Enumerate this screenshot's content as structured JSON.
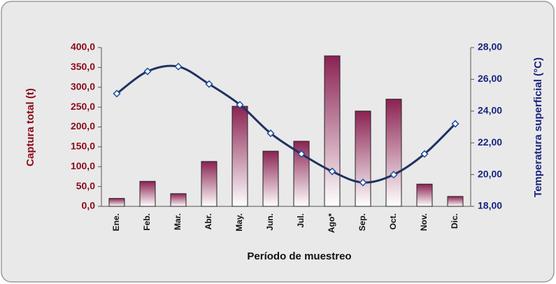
{
  "chart_data": {
    "type": "bar",
    "xlabel": "Período de muestreo",
    "ylabel": "Captura total (t)",
    "y2label": "Temperatura superficial (°C)",
    "categories": [
      "Ene.",
      "Feb.",
      "Mar.",
      "Abr.",
      "May.",
      "Jun.",
      "Jul.",
      "Ago*",
      "Sep.",
      "Oct.",
      "Nov.",
      "Dic."
    ],
    "series": [
      {
        "type": "bar",
        "color": "#8b2252",
        "values": [
          20,
          63,
          32,
          113,
          252,
          139,
          164,
          379,
          240,
          270,
          56,
          25
        ]
      },
      {
        "type": "line",
        "axis": "y2",
        "color": "#1f3160",
        "values": [
          25.1,
          26.5,
          26.8,
          25.7,
          24.4,
          22.6,
          21.3,
          20.2,
          19.5,
          20.0,
          21.3,
          23.2
        ]
      }
    ],
    "ylim": [
      0,
      400
    ],
    "yticks": [
      {
        "value": 0,
        "label": "0,0"
      },
      {
        "value": 50,
        "label": "50,0"
      },
      {
        "value": 100,
        "label": "100,0"
      },
      {
        "value": 150,
        "label": "150,0"
      },
      {
        "value": 200,
        "label": "200,0"
      },
      {
        "value": 250,
        "label": "250,0"
      },
      {
        "value": 300,
        "label": "300,0"
      },
      {
        "value": 350,
        "label": "350,0"
      },
      {
        "value": 400,
        "label": "400,0"
      }
    ],
    "y2lim": [
      18,
      28
    ],
    "y2ticks": [
      {
        "value": 18,
        "label": "18,00"
      },
      {
        "value": 20,
        "label": "20,00"
      },
      {
        "value": 22,
        "label": "22,00"
      },
      {
        "value": 24,
        "label": "24,00"
      },
      {
        "value": 26,
        "label": "26,00"
      },
      {
        "value": 28,
        "label": "28,00"
      }
    ]
  }
}
